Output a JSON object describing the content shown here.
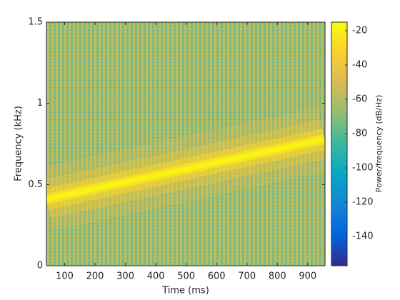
{
  "chart_data": {
    "type": "spectrogram",
    "xlabel": "Time (ms)",
    "ylabel": "Frequency (kHz)",
    "colorbar_label": "Power/frequency (dB/Hz)",
    "xlim": [
      40,
      957
    ],
    "xticks": [
      100,
      200,
      300,
      400,
      500,
      600,
      700,
      800,
      900
    ],
    "ylim": [
      0,
      1.5
    ],
    "yticks": [
      0,
      0.5,
      1,
      1.5
    ],
    "clim": [
      -157,
      -15
    ],
    "cticks": [
      -140,
      -120,
      -100,
      -80,
      -60,
      -40,
      -20
    ],
    "colormap": "parula",
    "background_level": -58,
    "ridge": {
      "x": [
        40,
        955
      ],
      "y": [
        0.41,
        0.78
      ],
      "level": -18
    }
  }
}
